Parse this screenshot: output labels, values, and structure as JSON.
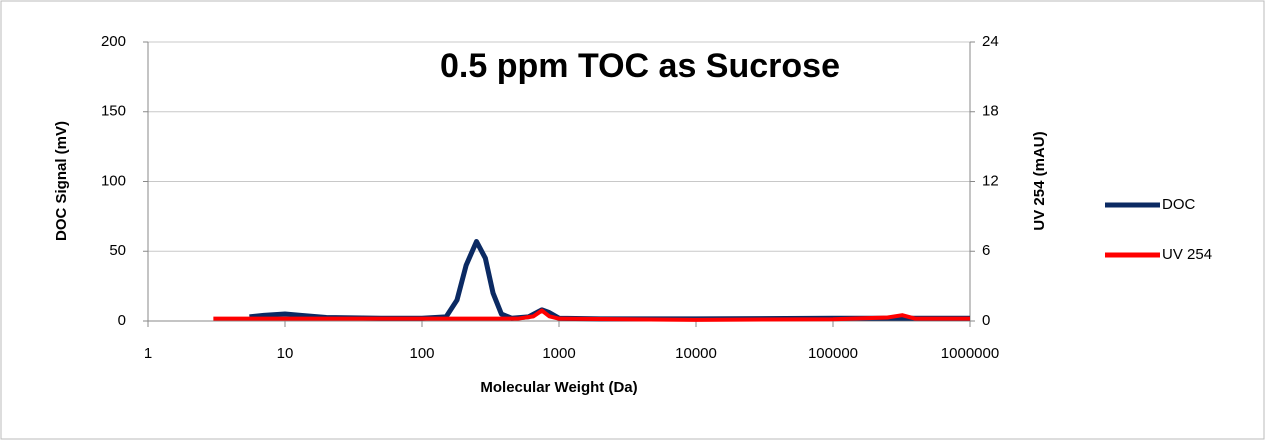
{
  "chart_data": {
    "type": "line",
    "title": "0.5 ppm TOC as Sucrose",
    "xlabel": "Molecular Weight (Da)",
    "ylabel": "DOC Signal (mV)",
    "y2label": "UV 254 (mAU)",
    "xlog": true,
    "xlim": [
      1,
      1000000
    ],
    "xticks": [
      1,
      10,
      100,
      1000,
      10000,
      100000,
      1000000
    ],
    "ylim": [
      0,
      200
    ],
    "yticks": [
      0,
      50,
      100,
      150,
      200
    ],
    "y2lim": [
      0,
      24
    ],
    "y2ticks": [
      0,
      6,
      12,
      18,
      24
    ],
    "grid": true,
    "legend": "right",
    "series": [
      {
        "name": "DOC",
        "color": "#0b2a63",
        "x": [
          5.5,
          7,
          10,
          13,
          20,
          50,
          100,
          150,
          180,
          210,
          250,
          290,
          330,
          380,
          450,
          600,
          750,
          850,
          1000,
          2000,
          10000,
          100000,
          300000,
          1000000
        ],
        "values": [
          3,
          4,
          5,
          4,
          2.5,
          2,
          2,
          3,
          15,
          40,
          57,
          45,
          20,
          5,
          2,
          3,
          8,
          6,
          2,
          1.5,
          1.5,
          2,
          2,
          2
        ]
      },
      {
        "name": "UV 254",
        "color": "#ff0000",
        "axis": "y2",
        "x": [
          3,
          10,
          100,
          500,
          650,
          750,
          850,
          1000,
          10000,
          100000,
          250000,
          320000,
          400000,
          1000000
        ],
        "values": [
          0.2,
          0.2,
          0.2,
          0.2,
          0.4,
          0.9,
          0.4,
          0.2,
          0.1,
          0.15,
          0.3,
          0.5,
          0.2,
          0.2
        ]
      }
    ]
  }
}
